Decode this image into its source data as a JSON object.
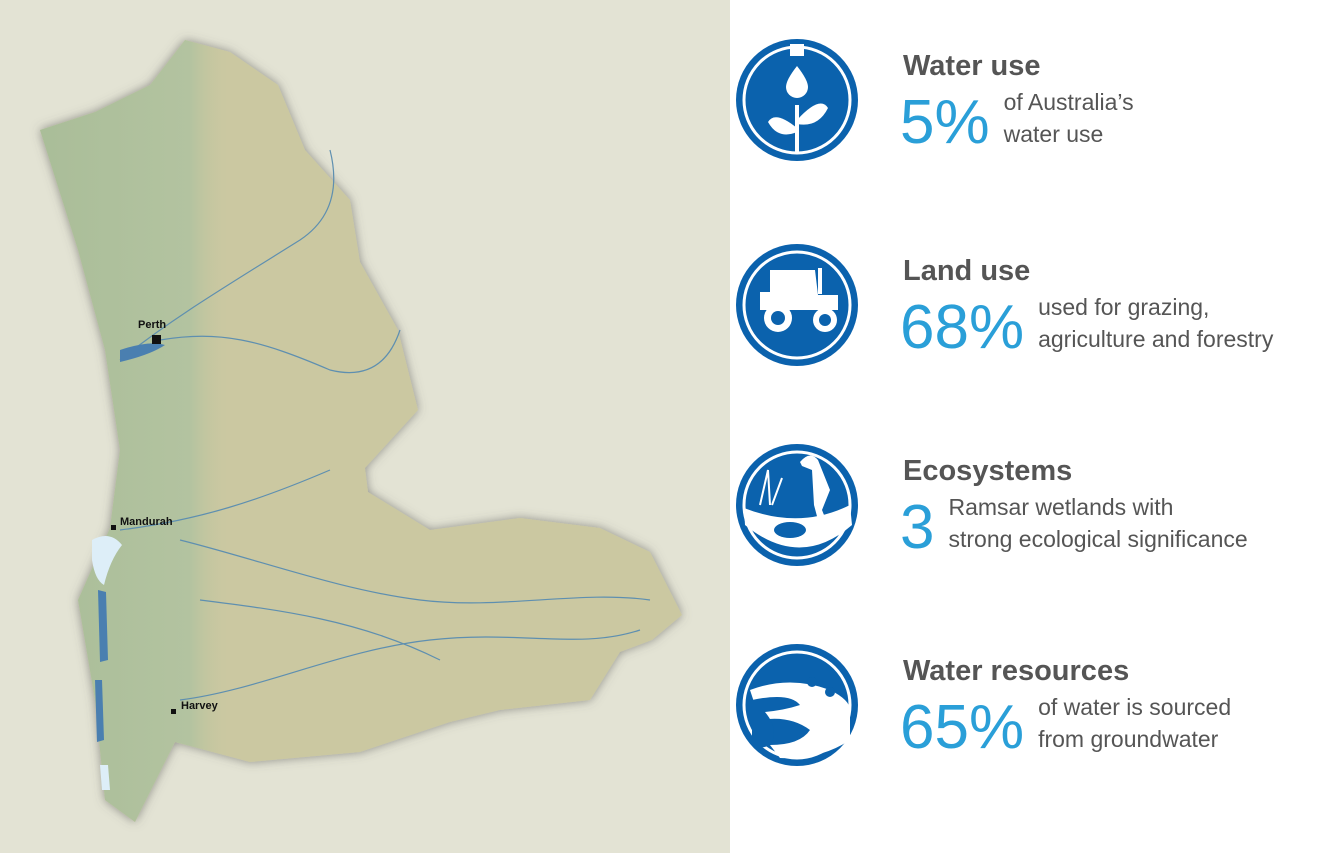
{
  "map": {
    "places": [
      {
        "label": "Perth"
      },
      {
        "label": "Mandurah"
      },
      {
        "label": "Harvey"
      }
    ]
  },
  "stats": [
    {
      "title": "Water use",
      "value": "5%",
      "description": [
        "of Australia’s",
        "water use"
      ]
    },
    {
      "title": "Land use",
      "value": "68%",
      "description": [
        "used for grazing,",
        "agriculture and forestry"
      ]
    },
    {
      "title": "Ecosystems",
      "value": "3",
      "description": [
        "Ramsar wetlands with",
        "strong ecological significance"
      ]
    },
    {
      "title": "Water resources",
      "value": "65%",
      "description": [
        "of water is sourced",
        "from groundwater"
      ]
    }
  ]
}
